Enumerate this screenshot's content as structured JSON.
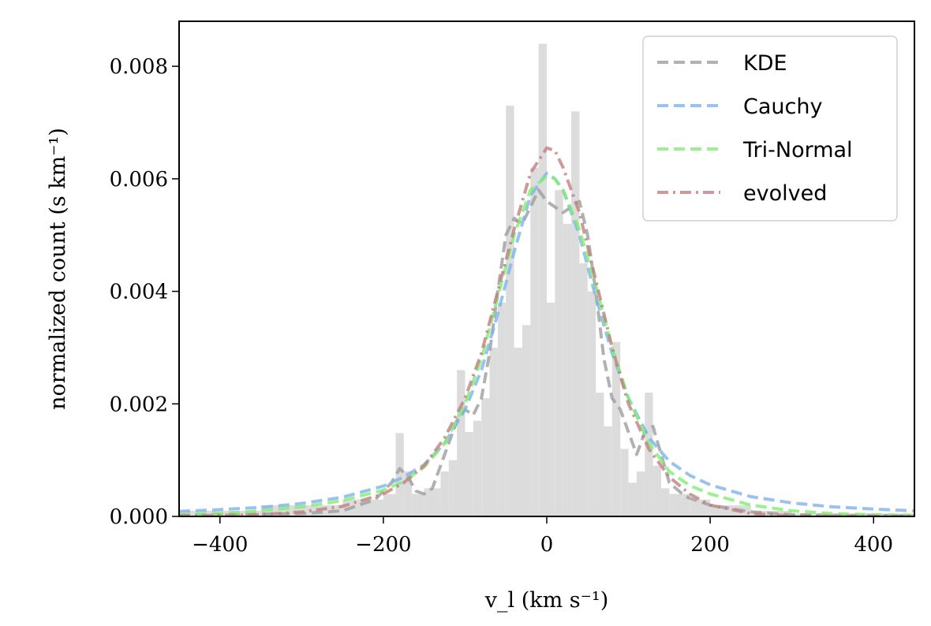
{
  "chart_data": {
    "type": "line",
    "xlabel": "v_l (km s⁻¹)",
    "ylabel": "normalized count (s km⁻¹)",
    "xlim": [
      -450,
      450
    ],
    "ylim": [
      0,
      0.0088
    ],
    "x_ticks": [
      -400,
      -200,
      0,
      200,
      400
    ],
    "x_tick_labels": [
      "−400",
      "−200",
      "0",
      "200",
      "400"
    ],
    "y_ticks": [
      0,
      0.002,
      0.004,
      0.006,
      0.008
    ],
    "y_tick_labels": [
      "0.000",
      "0.002",
      "0.004",
      "0.006",
      "0.008"
    ],
    "legend_position": "top-right",
    "grid": false,
    "histogram": {
      "color": "#dcdcdc",
      "bins": [
        [
          -450,
          -400,
          0.0001
        ],
        [
          -400,
          -350,
          0.0001
        ],
        [
          -350,
          -300,
          0.0002
        ],
        [
          -300,
          -250,
          0.0002
        ],
        [
          -250,
          -200,
          0.0003
        ],
        [
          -200,
          -185,
          0.0004
        ],
        [
          -185,
          -175,
          0.00148
        ],
        [
          -175,
          -165,
          0.0008
        ],
        [
          -165,
          -150,
          0.0004
        ],
        [
          -150,
          -140,
          0.0005
        ],
        [
          -140,
          -130,
          0.0005
        ],
        [
          -130,
          -120,
          0.0008
        ],
        [
          -120,
          -110,
          0.001
        ],
        [
          -110,
          -100,
          0.0026
        ],
        [
          -100,
          -90,
          0.0015
        ],
        [
          -90,
          -80,
          0.0017
        ],
        [
          -80,
          -70,
          0.0021
        ],
        [
          -70,
          -60,
          0.003
        ],
        [
          -60,
          -50,
          0.0038
        ],
        [
          -50,
          -40,
          0.0073
        ],
        [
          -40,
          -30,
          0.003
        ],
        [
          -30,
          -20,
          0.0034
        ],
        [
          -20,
          -10,
          0.0062
        ],
        [
          -10,
          0,
          0.0084
        ],
        [
          0,
          10,
          0.0038
        ],
        [
          10,
          20,
          0.0058
        ],
        [
          20,
          30,
          0.0052
        ],
        [
          30,
          40,
          0.0072
        ],
        [
          40,
          50,
          0.0045
        ],
        [
          50,
          60,
          0.004
        ],
        [
          60,
          70,
          0.0022
        ],
        [
          70,
          80,
          0.0016
        ],
        [
          80,
          90,
          0.0031
        ],
        [
          90,
          100,
          0.0012
        ],
        [
          100,
          110,
          0.0006
        ],
        [
          110,
          120,
          0.0008
        ],
        [
          120,
          130,
          0.0022
        ],
        [
          130,
          140,
          0.0009
        ],
        [
          140,
          150,
          0.0005
        ],
        [
          150,
          175,
          0.0004
        ],
        [
          175,
          200,
          0.0003
        ],
        [
          200,
          250,
          0.0002
        ],
        [
          250,
          300,
          0.0001
        ],
        [
          300,
          450,
          5e-05
        ]
      ]
    },
    "series": [
      {
        "name": "KDE",
        "color": "#9e9e9e",
        "dash": "dashed",
        "points": [
          [
            -450,
            2e-05
          ],
          [
            -300,
            5e-05
          ],
          [
            -250,
            0.0001
          ],
          [
            -210,
            0.0003
          ],
          [
            -190,
            0.0006
          ],
          [
            -180,
            0.00085
          ],
          [
            -170,
            0.0007
          ],
          [
            -160,
            0.00045
          ],
          [
            -150,
            0.0004
          ],
          [
            -140,
            0.0005
          ],
          [
            -130,
            0.0009
          ],
          [
            -120,
            0.0013
          ],
          [
            -110,
            0.0017
          ],
          [
            -100,
            0.0019
          ],
          [
            -90,
            0.0018
          ],
          [
            -80,
            0.0021
          ],
          [
            -70,
            0.0029
          ],
          [
            -60,
            0.004
          ],
          [
            -50,
            0.005
          ],
          [
            -40,
            0.0053
          ],
          [
            -30,
            0.0052
          ],
          [
            -20,
            0.0055
          ],
          [
            -10,
            0.0058
          ],
          [
            0,
            0.0056
          ],
          [
            10,
            0.0055
          ],
          [
            20,
            0.0054
          ],
          [
            30,
            0.0055
          ],
          [
            40,
            0.0056
          ],
          [
            50,
            0.005
          ],
          [
            60,
            0.004
          ],
          [
            70,
            0.0028
          ],
          [
            80,
            0.0021
          ],
          [
            90,
            0.0019
          ],
          [
            100,
            0.0015
          ],
          [
            110,
            0.0011
          ],
          [
            120,
            0.0015
          ],
          [
            130,
            0.0016
          ],
          [
            140,
            0.0011
          ],
          [
            150,
            0.0006
          ],
          [
            170,
            0.00035
          ],
          [
            200,
            0.0002
          ],
          [
            250,
            8e-05
          ],
          [
            300,
            3e-05
          ],
          [
            450,
            1e-05
          ]
        ]
      },
      {
        "name": "Cauchy",
        "color": "#7fb3ee",
        "dash": "dashed",
        "points": [
          [
            -450,
            9e-05
          ],
          [
            -400,
            0.00012
          ],
          [
            -350,
            0.00016
          ],
          [
            -300,
            0.00023
          ],
          [
            -250,
            0.00034
          ],
          [
            -200,
            0.00054
          ],
          [
            -175,
            0.0007
          ],
          [
            -150,
            0.00092
          ],
          [
            -125,
            0.0013
          ],
          [
            -100,
            0.0019
          ],
          [
            -80,
            0.0026
          ],
          [
            -60,
            0.0036
          ],
          [
            -40,
            0.0047
          ],
          [
            -20,
            0.0057
          ],
          [
            0,
            0.0061
          ],
          [
            10,
            0.006
          ],
          [
            20,
            0.0058
          ],
          [
            40,
            0.005
          ],
          [
            60,
            0.0039
          ],
          [
            80,
            0.0029
          ],
          [
            100,
            0.0021
          ],
          [
            125,
            0.0014
          ],
          [
            150,
            0.00098
          ],
          [
            175,
            0.00073
          ],
          [
            200,
            0.00056
          ],
          [
            250,
            0.00035
          ],
          [
            300,
            0.00024
          ],
          [
            350,
            0.00017
          ],
          [
            400,
            0.00013
          ],
          [
            450,
            0.0001
          ]
        ]
      },
      {
        "name": "Tri-Normal",
        "color": "#80ef70",
        "dash": "dashed",
        "points": [
          [
            -450,
            3e-05
          ],
          [
            -400,
            5e-05
          ],
          [
            -350,
            0.0001
          ],
          [
            -300,
            0.00017
          ],
          [
            -250,
            0.00028
          ],
          [
            -200,
            0.00047
          ],
          [
            -175,
            0.00062
          ],
          [
            -150,
            0.00088
          ],
          [
            -125,
            0.0013
          ],
          [
            -100,
            0.002
          ],
          [
            -80,
            0.0028
          ],
          [
            -60,
            0.0039
          ],
          [
            -40,
            0.005
          ],
          [
            -20,
            0.0058
          ],
          [
            0,
            0.00605
          ],
          [
            10,
            0.006
          ],
          [
            20,
            0.0058
          ],
          [
            40,
            0.0051
          ],
          [
            60,
            0.0041
          ],
          [
            80,
            0.003
          ],
          [
            100,
            0.0021
          ],
          [
            125,
            0.0013
          ],
          [
            150,
            0.0008
          ],
          [
            175,
            0.00055
          ],
          [
            200,
            0.0004
          ],
          [
            250,
            0.0002
          ],
          [
            300,
            0.0001
          ],
          [
            350,
            5e-05
          ],
          [
            400,
            3e-05
          ],
          [
            450,
            2e-05
          ]
        ]
      },
      {
        "name": "evolved",
        "color": "#c08080",
        "dash": "dashdot",
        "points": [
          [
            -450,
            1e-05
          ],
          [
            -350,
            3e-05
          ],
          [
            -300,
            8e-05
          ],
          [
            -250,
            0.00018
          ],
          [
            -200,
            0.0004
          ],
          [
            -175,
            0.0006
          ],
          [
            -150,
            0.0009
          ],
          [
            -125,
            0.0014
          ],
          [
            -100,
            0.0021
          ],
          [
            -80,
            0.0029
          ],
          [
            -60,
            0.004
          ],
          [
            -40,
            0.0051
          ],
          [
            -20,
            0.0061
          ],
          [
            0,
            0.00655
          ],
          [
            10,
            0.0065
          ],
          [
            20,
            0.0062
          ],
          [
            40,
            0.0054
          ],
          [
            60,
            0.0042
          ],
          [
            80,
            0.003
          ],
          [
            100,
            0.002
          ],
          [
            125,
            0.0012
          ],
          [
            150,
            0.0007
          ],
          [
            175,
            0.0004
          ],
          [
            200,
            0.0002
          ],
          [
            250,
            5e-05
          ],
          [
            300,
            1e-05
          ],
          [
            450,
            0.0
          ]
        ]
      }
    ]
  }
}
